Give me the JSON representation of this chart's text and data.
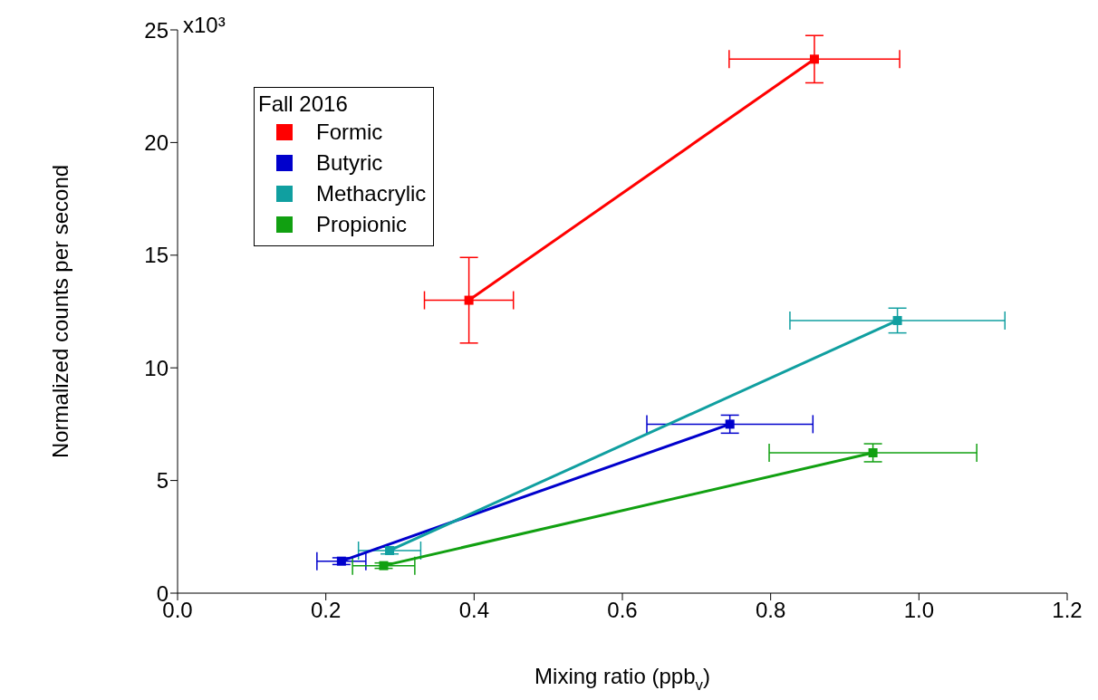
{
  "chart_data": {
    "type": "line",
    "annotations": [
      "x10³"
    ],
    "xlabel": "Mixing ratio (ppb$_{v}$)",
    "ylabel": "Normalized counts per second",
    "legend_title": "Fall 2016",
    "xlim": [
      0,
      1.2
    ],
    "xticks": [
      {
        "value": 0,
        "label": "0.0"
      },
      0.2,
      0.4,
      0.6,
      0.8,
      {
        "value": 1,
        "label": "1.0"
      },
      1.2
    ],
    "ylim": [
      0,
      25
    ],
    "yticks": [
      0,
      5,
      10,
      15,
      20,
      25
    ],
    "grid": false,
    "legend": "top left",
    "marker": "square",
    "line_style": "solid",
    "series": [
      {
        "name": "Formic",
        "color": "#ff0000",
        "x": [
          0.393,
          0.859
        ],
        "values": [
          13.0,
          23.7
        ],
        "errors": [
          1.9,
          1.05
        ],
        "xerrors": [
          0.06,
          0.115
        ]
      },
      {
        "name": "Butyric",
        "color": "#0000cc",
        "x": [
          0.221,
          0.745
        ],
        "values": [
          1.42,
          7.5
        ],
        "errors": [
          0.15,
          0.4
        ],
        "xerrors": [
          0.033,
          0.112
        ]
      },
      {
        "name": "Methacrylic",
        "color": "#109fa0",
        "x": [
          0.286,
          0.971
        ],
        "values": [
          1.89,
          12.1
        ],
        "errors": [
          0.15,
          0.55
        ],
        "xerrors": [
          0.042,
          0.145
        ]
      },
      {
        "name": "Propionic",
        "color": "#11a011",
        "x": [
          0.278,
          0.938
        ],
        "values": [
          1.22,
          6.23
        ],
        "errors": [
          0.12,
          0.4
        ],
        "xerrors": [
          0.042,
          0.14
        ]
      }
    ]
  }
}
